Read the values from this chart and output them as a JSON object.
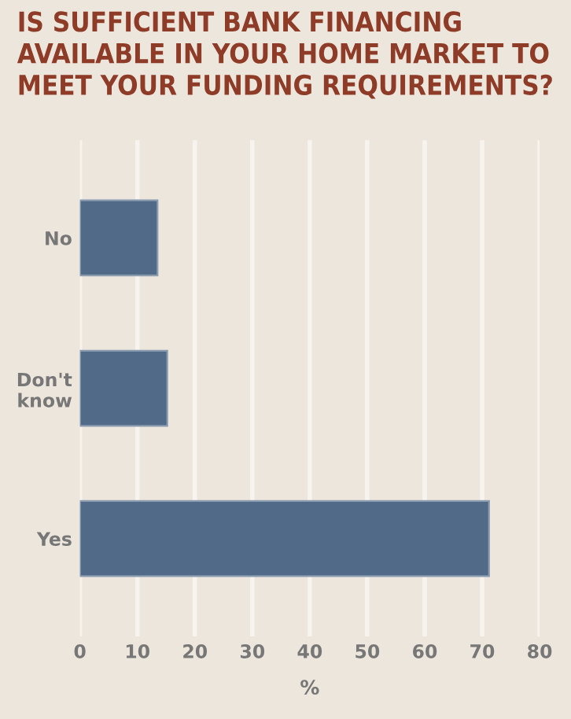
{
  "chart_data": {
    "type": "bar",
    "orientation": "horizontal",
    "title": "IS SUFFICIENT BANK FINANCING AVAILABLE IN YOUR HOME MARKET TO MEET YOUR FUNDING REQUIREMENTS?",
    "categories": [
      "No",
      "Don't know",
      "Yes"
    ],
    "values": [
      13.5,
      15.2,
      71.2
    ],
    "color": "#506a87",
    "xlabel": "%",
    "xlim": [
      0,
      80
    ],
    "xticks": [
      0,
      10,
      20,
      30,
      40,
      50,
      60,
      70,
      80
    ],
    "grid": "x",
    "legend": false
  }
}
